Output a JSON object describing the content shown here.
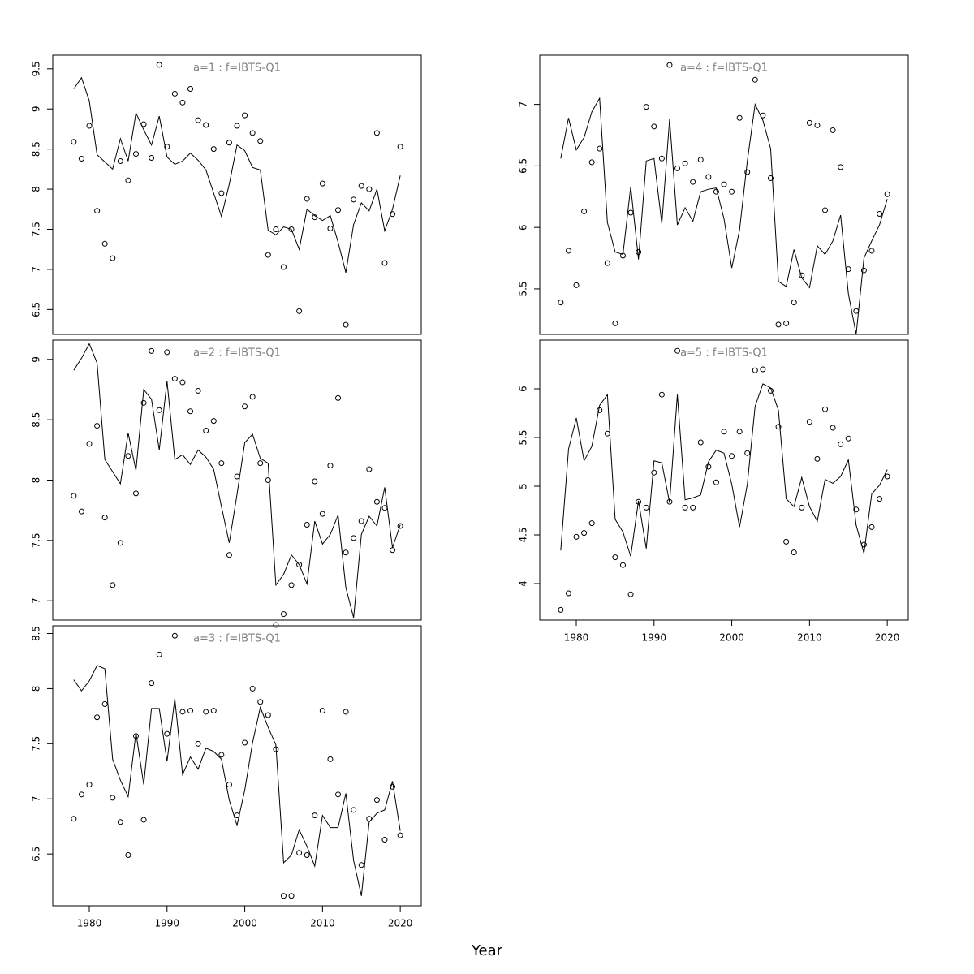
{
  "xlabel": "Year",
  "chart_data": [
    {
      "type": "line",
      "title": "a=1  :  f=IBTS-Q1",
      "x": [
        1978,
        1979,
        1980,
        1981,
        1982,
        1983,
        1984,
        1985,
        1986,
        1987,
        1988,
        1989,
        1990,
        1991,
        1992,
        1993,
        1994,
        1995,
        1996,
        1997,
        1998,
        1999,
        2000,
        2001,
        2002,
        2003,
        2004,
        2005,
        2006,
        2007,
        2008,
        2009,
        2010,
        2011,
        2012,
        2013,
        2014,
        2015,
        2016,
        2017,
        2018,
        2019,
        2020
      ],
      "xlim": [
        1975.3,
        2022.7
      ],
      "ylim": [
        6.19,
        9.67
      ],
      "yticks": [
        6.5,
        7.0,
        7.5,
        8.0,
        8.5,
        9.0,
        9.5
      ],
      "series": [
        {
          "mode": "line",
          "color": "#000000",
          "values": [
            9.25,
            9.39,
            9.1,
            8.43,
            8.34,
            8.25,
            8.63,
            8.35,
            8.95,
            8.74,
            8.55,
            8.91,
            8.4,
            8.31,
            8.35,
            8.45,
            8.36,
            8.24,
            7.95,
            7.66,
            8.06,
            8.55,
            8.48,
            8.27,
            8.24,
            7.49,
            7.43,
            7.53,
            7.5,
            7.25,
            7.75,
            7.67,
            7.61,
            7.67,
            7.34,
            6.96,
            7.56,
            7.83,
            7.73,
            8.0,
            7.48,
            7.75,
            8.17
          ]
        },
        {
          "mode": "points",
          "color": "#000000",
          "values": [
            8.59,
            8.38,
            8.79,
            7.73,
            7.32,
            7.14,
            8.35,
            8.11,
            8.44,
            8.81,
            8.39,
            9.55,
            8.53,
            9.19,
            9.08,
            9.25,
            8.86,
            8.8,
            8.5,
            7.95,
            8.58,
            8.79,
            8.92,
            8.7,
            8.6,
            7.18,
            7.5,
            7.03,
            7.5,
            6.48,
            7.88,
            7.65,
            8.07,
            7.51,
            7.74,
            6.31,
            7.87,
            8.04,
            8.0,
            8.7,
            7.08,
            7.69,
            8.53
          ]
        }
      ]
    },
    {
      "type": "line",
      "title": "a=2  :  f=IBTS-Q1",
      "x": [
        1978,
        1979,
        1980,
        1981,
        1982,
        1983,
        1984,
        1985,
        1986,
        1987,
        1988,
        1989,
        1990,
        1991,
        1992,
        1993,
        1994,
        1995,
        1996,
        1997,
        1998,
        1999,
        2000,
        2001,
        2002,
        2003,
        2004,
        2005,
        2006,
        2007,
        2008,
        2009,
        2010,
        2011,
        2012,
        2013,
        2014,
        2015,
        2016,
        2017,
        2018,
        2019,
        2020
      ],
      "xlim": [
        1975.3,
        2022.7
      ],
      "ylim": [
        6.84,
        9.16
      ],
      "yticks": [
        7.0,
        7.5,
        8.0,
        8.5,
        9.0
      ],
      "series": [
        {
          "mode": "line",
          "color": "#000000",
          "values": [
            8.91,
            9.01,
            9.13,
            8.97,
            8.17,
            8.07,
            7.97,
            8.39,
            8.08,
            8.75,
            8.67,
            8.25,
            8.82,
            8.17,
            8.21,
            8.13,
            8.25,
            8.19,
            8.09,
            7.78,
            7.48,
            7.88,
            8.31,
            8.38,
            8.18,
            8.14,
            7.13,
            7.22,
            7.38,
            7.3,
            7.14,
            7.66,
            7.47,
            7.55,
            7.71,
            7.11,
            6.86,
            7.55,
            7.7,
            7.62,
            7.94,
            7.44,
            7.63
          ]
        },
        {
          "mode": "points",
          "color": "#000000",
          "values": [
            7.87,
            7.74,
            8.3,
            8.45,
            7.69,
            7.13,
            7.48,
            8.2,
            7.89,
            8.64,
            9.07,
            8.58,
            9.06,
            8.84,
            8.81,
            8.57,
            8.74,
            8.41,
            8.49,
            8.14,
            7.38,
            8.03,
            8.61,
            8.69,
            8.14,
            8.0,
            6.8,
            6.89,
            7.13,
            7.3,
            7.63,
            7.99,
            7.72,
            8.12,
            8.68,
            7.4,
            7.52,
            7.66,
            8.09,
            7.82,
            7.77,
            7.42,
            7.62
          ]
        }
      ]
    },
    {
      "type": "line",
      "title": "a=3  :  f=IBTS-Q1",
      "x": [
        1978,
        1979,
        1980,
        1981,
        1982,
        1983,
        1984,
        1985,
        1986,
        1987,
        1988,
        1989,
        1990,
        1991,
        1992,
        1993,
        1994,
        1995,
        1996,
        1997,
        1998,
        1999,
        2000,
        2001,
        2002,
        2003,
        2004,
        2005,
        2006,
        2007,
        2008,
        2009,
        2010,
        2011,
        2012,
        2013,
        2014,
        2015,
        2016,
        2017,
        2018,
        2019,
        2020
      ],
      "xlim": [
        1975.3,
        2022.7
      ],
      "xticks": [
        1980,
        1990,
        2000,
        2010,
        2020
      ],
      "ylim": [
        6.03,
        8.57
      ],
      "yticks": [
        6.5,
        7.0,
        7.5,
        8.0,
        8.5
      ],
      "series": [
        {
          "mode": "line",
          "color": "#000000",
          "values": [
            8.08,
            7.98,
            8.07,
            8.21,
            8.18,
            7.36,
            7.17,
            7.02,
            7.6,
            7.13,
            7.82,
            7.82,
            7.34,
            7.91,
            7.22,
            7.38,
            7.27,
            7.46,
            7.43,
            7.36,
            6.99,
            6.76,
            7.08,
            7.51,
            7.83,
            7.65,
            7.49,
            6.42,
            6.49,
            6.72,
            6.57,
            6.39,
            6.85,
            6.74,
            6.74,
            7.05,
            6.44,
            6.12,
            6.79,
            6.87,
            6.9,
            7.16,
            6.71
          ]
        },
        {
          "mode": "points",
          "color": "#000000",
          "values": [
            6.82,
            7.04,
            7.13,
            7.74,
            7.86,
            7.01,
            6.79,
            6.49,
            7.57,
            6.81,
            8.05,
            8.31,
            7.59,
            8.48,
            7.79,
            7.8,
            7.5,
            7.79,
            7.8,
            7.4,
            7.13,
            6.85,
            7.51,
            8.0,
            7.88,
            7.76,
            7.45,
            6.12,
            6.12,
            6.51,
            6.49,
            6.85,
            7.8,
            7.36,
            7.04,
            7.79,
            6.9,
            6.4,
            6.82,
            6.99,
            6.63,
            7.11,
            6.67
          ]
        }
      ]
    },
    {
      "type": "line",
      "title": "a=4  :  f=IBTS-Q1",
      "x": [
        1978,
        1979,
        1980,
        1981,
        1982,
        1983,
        1984,
        1985,
        1986,
        1987,
        1988,
        1989,
        1990,
        1991,
        1992,
        1993,
        1994,
        1995,
        1996,
        1997,
        1998,
        1999,
        2000,
        2001,
        2002,
        2003,
        2004,
        2005,
        2006,
        2007,
        2008,
        2009,
        2010,
        2011,
        2012,
        2013,
        2014,
        2015,
        2016,
        2017,
        2018,
        2019,
        2020
      ],
      "xlim": [
        1975.3,
        2022.7
      ],
      "ylim": [
        5.13,
        7.4
      ],
      "yticks": [
        5.5,
        6.0,
        6.5,
        7.0
      ],
      "series": [
        {
          "mode": "line",
          "color": "#000000",
          "values": [
            6.56,
            6.89,
            6.63,
            6.73,
            6.94,
            7.05,
            6.04,
            5.8,
            5.78,
            6.33,
            5.74,
            6.54,
            6.56,
            6.03,
            6.88,
            6.02,
            6.16,
            6.05,
            6.29,
            6.31,
            6.32,
            6.07,
            5.67,
            5.98,
            6.54,
            7.0,
            6.87,
            6.64,
            5.56,
            5.52,
            5.82,
            5.59,
            5.51,
            5.85,
            5.78,
            5.89,
            6.1,
            5.46,
            5.13,
            5.75,
            5.89,
            6.02,
            6.23
          ]
        },
        {
          "mode": "points",
          "color": "#000000",
          "values": [
            5.39,
            5.81,
            5.53,
            6.13,
            6.53,
            6.64,
            5.71,
            5.22,
            5.77,
            6.12,
            5.8,
            6.98,
            6.82,
            6.56,
            7.32,
            6.48,
            6.52,
            6.37,
            6.55,
            6.41,
            6.29,
            6.35,
            6.29,
            6.89,
            6.45,
            7.2,
            6.91,
            6.4,
            5.21,
            5.22,
            5.39,
            5.61,
            6.85,
            6.83,
            6.14,
            6.79,
            6.49,
            5.66,
            5.32,
            5.65,
            5.81,
            6.11,
            6.27
          ]
        }
      ]
    },
    {
      "type": "line",
      "title": "a=5  :  f=IBTS-Q1",
      "x": [
        1978,
        1979,
        1980,
        1981,
        1982,
        1983,
        1984,
        1985,
        1986,
        1987,
        1988,
        1989,
        1990,
        1991,
        1992,
        1993,
        1994,
        1995,
        1996,
        1997,
        1998,
        1999,
        2000,
        2001,
        2002,
        2003,
        2004,
        2005,
        2006,
        2007,
        2008,
        2009,
        2010,
        2011,
        2012,
        2013,
        2014,
        2015,
        2016,
        2017,
        2018,
        2019,
        2020
      ],
      "xlim": [
        1975.3,
        2022.7
      ],
      "xticks": [
        1980,
        1990,
        2000,
        2010,
        2020
      ],
      "ylim": [
        3.625,
        6.5
      ],
      "yticks": [
        4.0,
        4.5,
        5.0,
        5.5,
        6.0
      ],
      "series": [
        {
          "mode": "line",
          "color": "#000000",
          "values": [
            4.34,
            5.38,
            5.7,
            5.26,
            5.41,
            5.83,
            5.94,
            4.66,
            4.53,
            4.28,
            4.85,
            4.36,
            5.26,
            5.24,
            4.83,
            5.94,
            4.86,
            4.88,
            4.91,
            5.25,
            5.37,
            5.34,
            5.02,
            4.58,
            5.02,
            5.82,
            6.05,
            6.01,
            5.78,
            4.87,
            4.79,
            5.09,
            4.79,
            4.64,
            5.07,
            5.03,
            5.1,
            5.27,
            4.6,
            4.31,
            4.92,
            5.01,
            5.17
          ]
        },
        {
          "mode": "points",
          "color": "#000000",
          "values": [
            3.73,
            3.9,
            4.48,
            4.52,
            4.62,
            5.78,
            5.54,
            4.27,
            4.19,
            3.89,
            4.84,
            4.78,
            5.14,
            5.94,
            4.84,
            6.39,
            4.78,
            4.78,
            5.45,
            5.2,
            5.04,
            5.56,
            5.31,
            5.56,
            5.34,
            6.19,
            6.2,
            5.98,
            5.61,
            4.43,
            4.32,
            4.78,
            5.66,
            5.28,
            5.79,
            5.6,
            5.43,
            5.49,
            4.76,
            4.4,
            4.58,
            4.87,
            5.1
          ]
        }
      ]
    }
  ]
}
